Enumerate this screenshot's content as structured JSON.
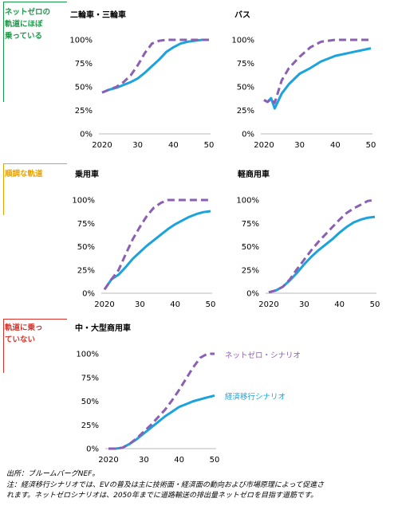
{
  "categories": [
    {
      "label_lines": [
        "ネットゼロの",
        "軌道にほぼ",
        "乗っている"
      ],
      "color": "#1a9a48"
    },
    {
      "label_lines": [
        "順調な軌道"
      ],
      "color": "#e9a300"
    },
    {
      "label_lines": [
        "軌道に乗っ",
        "ていない"
      ],
      "color": "#d9342b"
    }
  ],
  "colors": {
    "net_zero": "#8b5fb3",
    "economic": "#1aa3dc"
  },
  "chart_data": [
    {
      "type": "line",
      "title": "二輪車・三輪車",
      "xticks": [
        2020,
        30,
        40,
        50
      ],
      "yticks": [
        "0%",
        "25%",
        "50%",
        "75%",
        "100%"
      ],
      "xlim": [
        2020,
        2050
      ],
      "ylim": [
        0,
        100
      ],
      "series": [
        {
          "key": "net_zero",
          "style": "dashed",
          "x": [
            2020,
            2022,
            2024,
            2026,
            2028,
            2030,
            2032,
            2034,
            2036,
            2038,
            2040,
            2045,
            2050
          ],
          "y": [
            44,
            47,
            50,
            55,
            62,
            73,
            86,
            96,
            99,
            100,
            100,
            100,
            100
          ]
        },
        {
          "key": "economic",
          "style": "solid",
          "x": [
            2020,
            2022,
            2024,
            2026,
            2028,
            2030,
            2032,
            2034,
            2036,
            2038,
            2040,
            2042,
            2044,
            2046,
            2048,
            2050
          ],
          "y": [
            44,
            47,
            49,
            52,
            55,
            59,
            65,
            72,
            79,
            87,
            92,
            96,
            98,
            99,
            100,
            100
          ]
        }
      ]
    },
    {
      "type": "line",
      "title": "バス",
      "xticks": [
        2020,
        30,
        40,
        50
      ],
      "yticks": [
        "0%",
        "25%",
        "50%",
        "75%",
        "100%"
      ],
      "xlim": [
        2020,
        2050
      ],
      "ylim": [
        0,
        100
      ],
      "series": [
        {
          "key": "net_zero",
          "style": "dashed",
          "x": [
            2020,
            2021,
            2022,
            2023,
            2025,
            2027,
            2030,
            2033,
            2036,
            2040,
            2045,
            2050
          ],
          "y": [
            36,
            34,
            37,
            33,
            57,
            70,
            82,
            92,
            98,
            100,
            100,
            100
          ]
        },
        {
          "key": "economic",
          "style": "solid",
          "x": [
            2020,
            2021,
            2022,
            2023,
            2025,
            2027,
            2030,
            2033,
            2036,
            2040,
            2045,
            2050
          ],
          "y": [
            36,
            34,
            38,
            27,
            43,
            53,
            64,
            70,
            77,
            83,
            87,
            91
          ]
        }
      ]
    },
    {
      "type": "line",
      "title": "乗用車",
      "xticks": [
        2020,
        30,
        40,
        50
      ],
      "yticks": [
        "0%",
        "25%",
        "50%",
        "75%",
        "100%"
      ],
      "xlim": [
        2020,
        2050
      ],
      "ylim": [
        0,
        100
      ],
      "series": [
        {
          "key": "net_zero",
          "style": "dashed",
          "x": [
            2020,
            2022,
            2024,
            2026,
            2028,
            2030,
            2032,
            2034,
            2036,
            2038,
            2040,
            2045,
            2050
          ],
          "y": [
            4,
            15,
            25,
            42,
            58,
            71,
            83,
            92,
            97,
            100,
            100,
            100,
            100
          ]
        },
        {
          "key": "economic",
          "style": "solid",
          "x": [
            2020,
            2022,
            2024,
            2026,
            2028,
            2030,
            2032,
            2034,
            2036,
            2038,
            2040,
            2042,
            2044,
            2046,
            2048,
            2050
          ],
          "y": [
            4,
            15,
            20,
            28,
            37,
            44,
            51,
            57,
            63,
            69,
            74,
            78,
            82,
            85,
            87,
            88
          ]
        }
      ]
    },
    {
      "type": "line",
      "title": "軽商用車",
      "xticks": [
        2020,
        30,
        40,
        50
      ],
      "yticks": [
        "0%",
        "25%",
        "50%",
        "75%",
        "100%"
      ],
      "xlim": [
        2020,
        2050
      ],
      "ylim": [
        0,
        100
      ],
      "series": [
        {
          "key": "net_zero",
          "style": "dashed",
          "x": [
            2020,
            2022,
            2024,
            2026,
            2028,
            2030,
            2032,
            2034,
            2036,
            2038,
            2040,
            2042,
            2044,
            2046,
            2048,
            2050
          ],
          "y": [
            1,
            3,
            7,
            15,
            26,
            36,
            46,
            55,
            63,
            71,
            79,
            86,
            91,
            95,
            99,
            100
          ]
        },
        {
          "key": "economic",
          "style": "solid",
          "x": [
            2020,
            2022,
            2024,
            2026,
            2028,
            2030,
            2032,
            2034,
            2036,
            2038,
            2040,
            2042,
            2044,
            2046,
            2048,
            2050
          ],
          "y": [
            1,
            3,
            7,
            14,
            22,
            31,
            39,
            46,
            52,
            58,
            65,
            71,
            76,
            79,
            81,
            82
          ]
        }
      ]
    },
    {
      "type": "line",
      "title": "中・大型商用車",
      "xticks": [
        2020,
        30,
        40,
        50
      ],
      "yticks": [
        "0%",
        "25%",
        "50%",
        "75%",
        "100%"
      ],
      "xlim": [
        2020,
        2050
      ],
      "ylim": [
        0,
        100
      ],
      "series": [
        {
          "key": "net_zero",
          "style": "dashed",
          "name": "ネットゼロ・シナリオ",
          "x": [
            2020,
            2022,
            2024,
            2026,
            2028,
            2030,
            2032,
            2034,
            2036,
            2038,
            2040,
            2042,
            2044,
            2046,
            2048,
            2050
          ],
          "y": [
            0,
            0,
            1,
            5,
            11,
            18,
            25,
            33,
            41,
            51,
            62,
            74,
            86,
            96,
            100,
            100
          ]
        },
        {
          "key": "economic",
          "style": "solid",
          "name": "経済移行シナリオ",
          "x": [
            2020,
            2022,
            2024,
            2026,
            2028,
            2030,
            2032,
            2034,
            2036,
            2038,
            2040,
            2042,
            2044,
            2046,
            2048,
            2050
          ],
          "y": [
            0,
            0,
            1,
            5,
            10,
            16,
            22,
            28,
            34,
            39,
            44,
            47,
            50,
            52,
            54,
            56
          ]
        }
      ]
    }
  ],
  "footer": {
    "source": "出所：ブルームバーグNEF。",
    "note_line1": "注：経済移行シナリオでは、EVの普及は主に技術面・経済面の動向および市場原理によって促進さ",
    "note_line2": "れます。ネットゼロシナリオは、2050年までに道路輸送の排出量ネットゼロを目指す道筋です。"
  }
}
